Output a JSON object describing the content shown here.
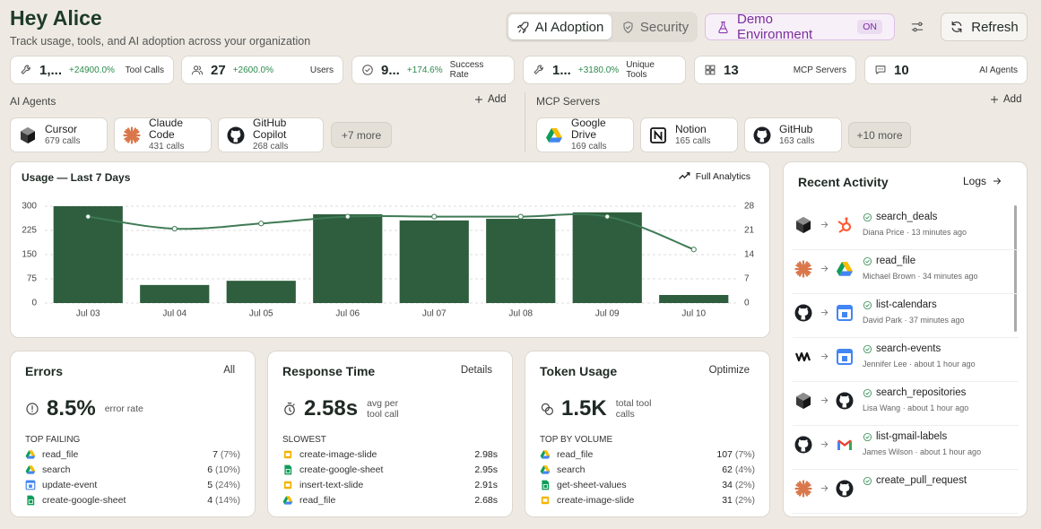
{
  "header": {
    "title": "Hey Alice",
    "subtitle": "Track usage, tools, and AI adoption across your organization"
  },
  "toolbar": {
    "tabs": [
      "AI Adoption",
      "Security"
    ],
    "environment": "Demo Environment",
    "environment_status": "ON",
    "refresh": "Refresh"
  },
  "stats": [
    {
      "value": "1,...",
      "change": "+24900.0%",
      "label": "Tool Calls"
    },
    {
      "value": 27,
      "change": "+2600.0%",
      "label": "Users"
    },
    {
      "value": "9...",
      "change": "+174.6%",
      "label": "Success Rate"
    },
    {
      "value": "1...",
      "change": "+3180.0%",
      "label": "Unique Tools"
    },
    {
      "value": 13,
      "label": "MCP Servers"
    },
    {
      "value": 10,
      "label": "AI Agents"
    }
  ],
  "agents": {
    "title": "AI Agents",
    "action": "Add",
    "items": [
      {
        "name": "Cursor",
        "calls": "679 calls"
      },
      {
        "name": "Claude Code",
        "calls": "431 calls"
      },
      {
        "name": "GitHub Copilot",
        "calls": "268 calls"
      }
    ],
    "more": "+7 more"
  },
  "servers": {
    "title": "MCP Servers",
    "action": "Add",
    "items": [
      {
        "name": "Google Drive",
        "calls": "169 calls"
      },
      {
        "name": "Notion",
        "calls": "165 calls"
      },
      {
        "name": "GitHub",
        "calls": "163 calls"
      }
    ],
    "more": "+10 more"
  },
  "chart_data": {
    "type": "bar",
    "title": "Usage — Last 7 Days",
    "link": "Full Analytics",
    "categories": [
      "Jul 03",
      "Jul 04",
      "Jul 05",
      "Jul 06",
      "Jul 07",
      "Jul 08",
      "Jul 09",
      "Jul 10"
    ],
    "series": [
      {
        "type": "bar",
        "color": "#2e5e3e",
        "values": [
          300,
          56,
          69,
          275,
          256,
          261,
          281,
          25
        ]
      },
      {
        "type": "line",
        "axis": "y2",
        "color": "#3f7a55",
        "values": [
          25,
          21.5,
          23,
          25,
          25,
          25,
          25,
          15.5
        ]
      }
    ],
    "ylim": [
      0,
      300
    ],
    "yticks": [
      0,
      75,
      150,
      225,
      300
    ],
    "y2lim": [
      0,
      28
    ],
    "y2ticks": [
      0,
      7,
      14,
      21,
      28
    ],
    "grid": true
  },
  "errors": {
    "title": "Errors",
    "action": "All",
    "value": "8.5%",
    "caption": "error rate",
    "list_title": "TOP FAILING",
    "rows": [
      {
        "name": "read_file",
        "value": 7,
        "share": "(7%)"
      },
      {
        "name": "search",
        "value": 6,
        "share": "(10%)"
      },
      {
        "name": "update-event",
        "value": 5,
        "share": "(24%)"
      },
      {
        "name": "create-google-sheet",
        "value": 4,
        "share": "(14%)"
      }
    ]
  },
  "response_time": {
    "title": "Response Time",
    "action": "Details",
    "value": "2.58s",
    "caption": "avg per tool call",
    "list_title": "SLOWEST",
    "rows": [
      {
        "name": "create-image-slide",
        "value": "2.98s"
      },
      {
        "name": "create-google-sheet",
        "value": "2.95s"
      },
      {
        "name": "insert-text-slide",
        "value": "2.91s"
      },
      {
        "name": "read_file",
        "value": "2.68s"
      }
    ]
  },
  "token_usage": {
    "title": "Token Usage",
    "action": "Optimize",
    "value": "1.5K",
    "caption": "total tool calls",
    "list_title": "TOP BY VOLUME",
    "rows": [
      {
        "name": "read_file",
        "value": 107,
        "share": "(7%)"
      },
      {
        "name": "search",
        "value": 62,
        "share": "(4%)"
      },
      {
        "name": "get-sheet-values",
        "value": 34,
        "share": "(2%)"
      },
      {
        "name": "create-image-slide",
        "value": 31,
        "share": "(2%)"
      }
    ]
  },
  "activity": {
    "title": "Recent Activity",
    "action": "Logs",
    "items": [
      {
        "tool": "search_deals",
        "meta": "Diana Price · 13 minutes ago"
      },
      {
        "tool": "read_file",
        "meta": "Michael Brown · 34 minutes ago"
      },
      {
        "tool": "list-calendars",
        "meta": "David Park · 37 minutes ago"
      },
      {
        "tool": "search-events",
        "meta": "Jennifer Lee · about 1 hour ago"
      },
      {
        "tool": "search_repositories",
        "meta": "Lisa Wang · about 1 hour ago"
      },
      {
        "tool": "list-gmail-labels",
        "meta": "James Wilson · about 1 hour ago"
      },
      {
        "tool": "create_pull_request"
      }
    ]
  }
}
